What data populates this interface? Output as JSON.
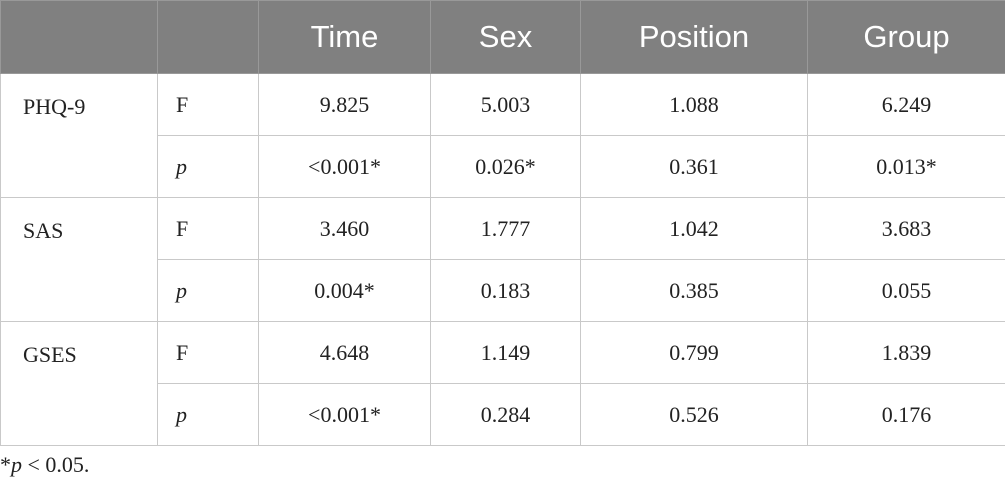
{
  "table": {
    "header": [
      "Time",
      "Sex",
      "Position",
      "Group"
    ],
    "groups": [
      {
        "label": "PHQ-9",
        "rows": [
          {
            "stat": "F",
            "values": [
              "9.825",
              "5.003",
              "1.088",
              "6.249"
            ]
          },
          {
            "stat": "p",
            "values": [
              "<0.001*",
              "0.026*",
              "0.361",
              "0.013*"
            ]
          }
        ]
      },
      {
        "label": "SAS",
        "rows": [
          {
            "stat": "F",
            "values": [
              "3.460",
              "1.777",
              "1.042",
              "3.683"
            ]
          },
          {
            "stat": "p",
            "values": [
              "0.004*",
              "0.183",
              "0.385",
              "0.055"
            ]
          }
        ]
      },
      {
        "label": "GSES",
        "rows": [
          {
            "stat": "F",
            "values": [
              "4.648",
              "1.149",
              "0.799",
              "1.839"
            ]
          },
          {
            "stat": "p",
            "values": [
              "<0.001*",
              "0.284",
              "0.526",
              "0.176"
            ]
          }
        ]
      }
    ]
  },
  "footnote": {
    "mark": "*",
    "symbol": "p",
    "text": " < 0.05."
  }
}
